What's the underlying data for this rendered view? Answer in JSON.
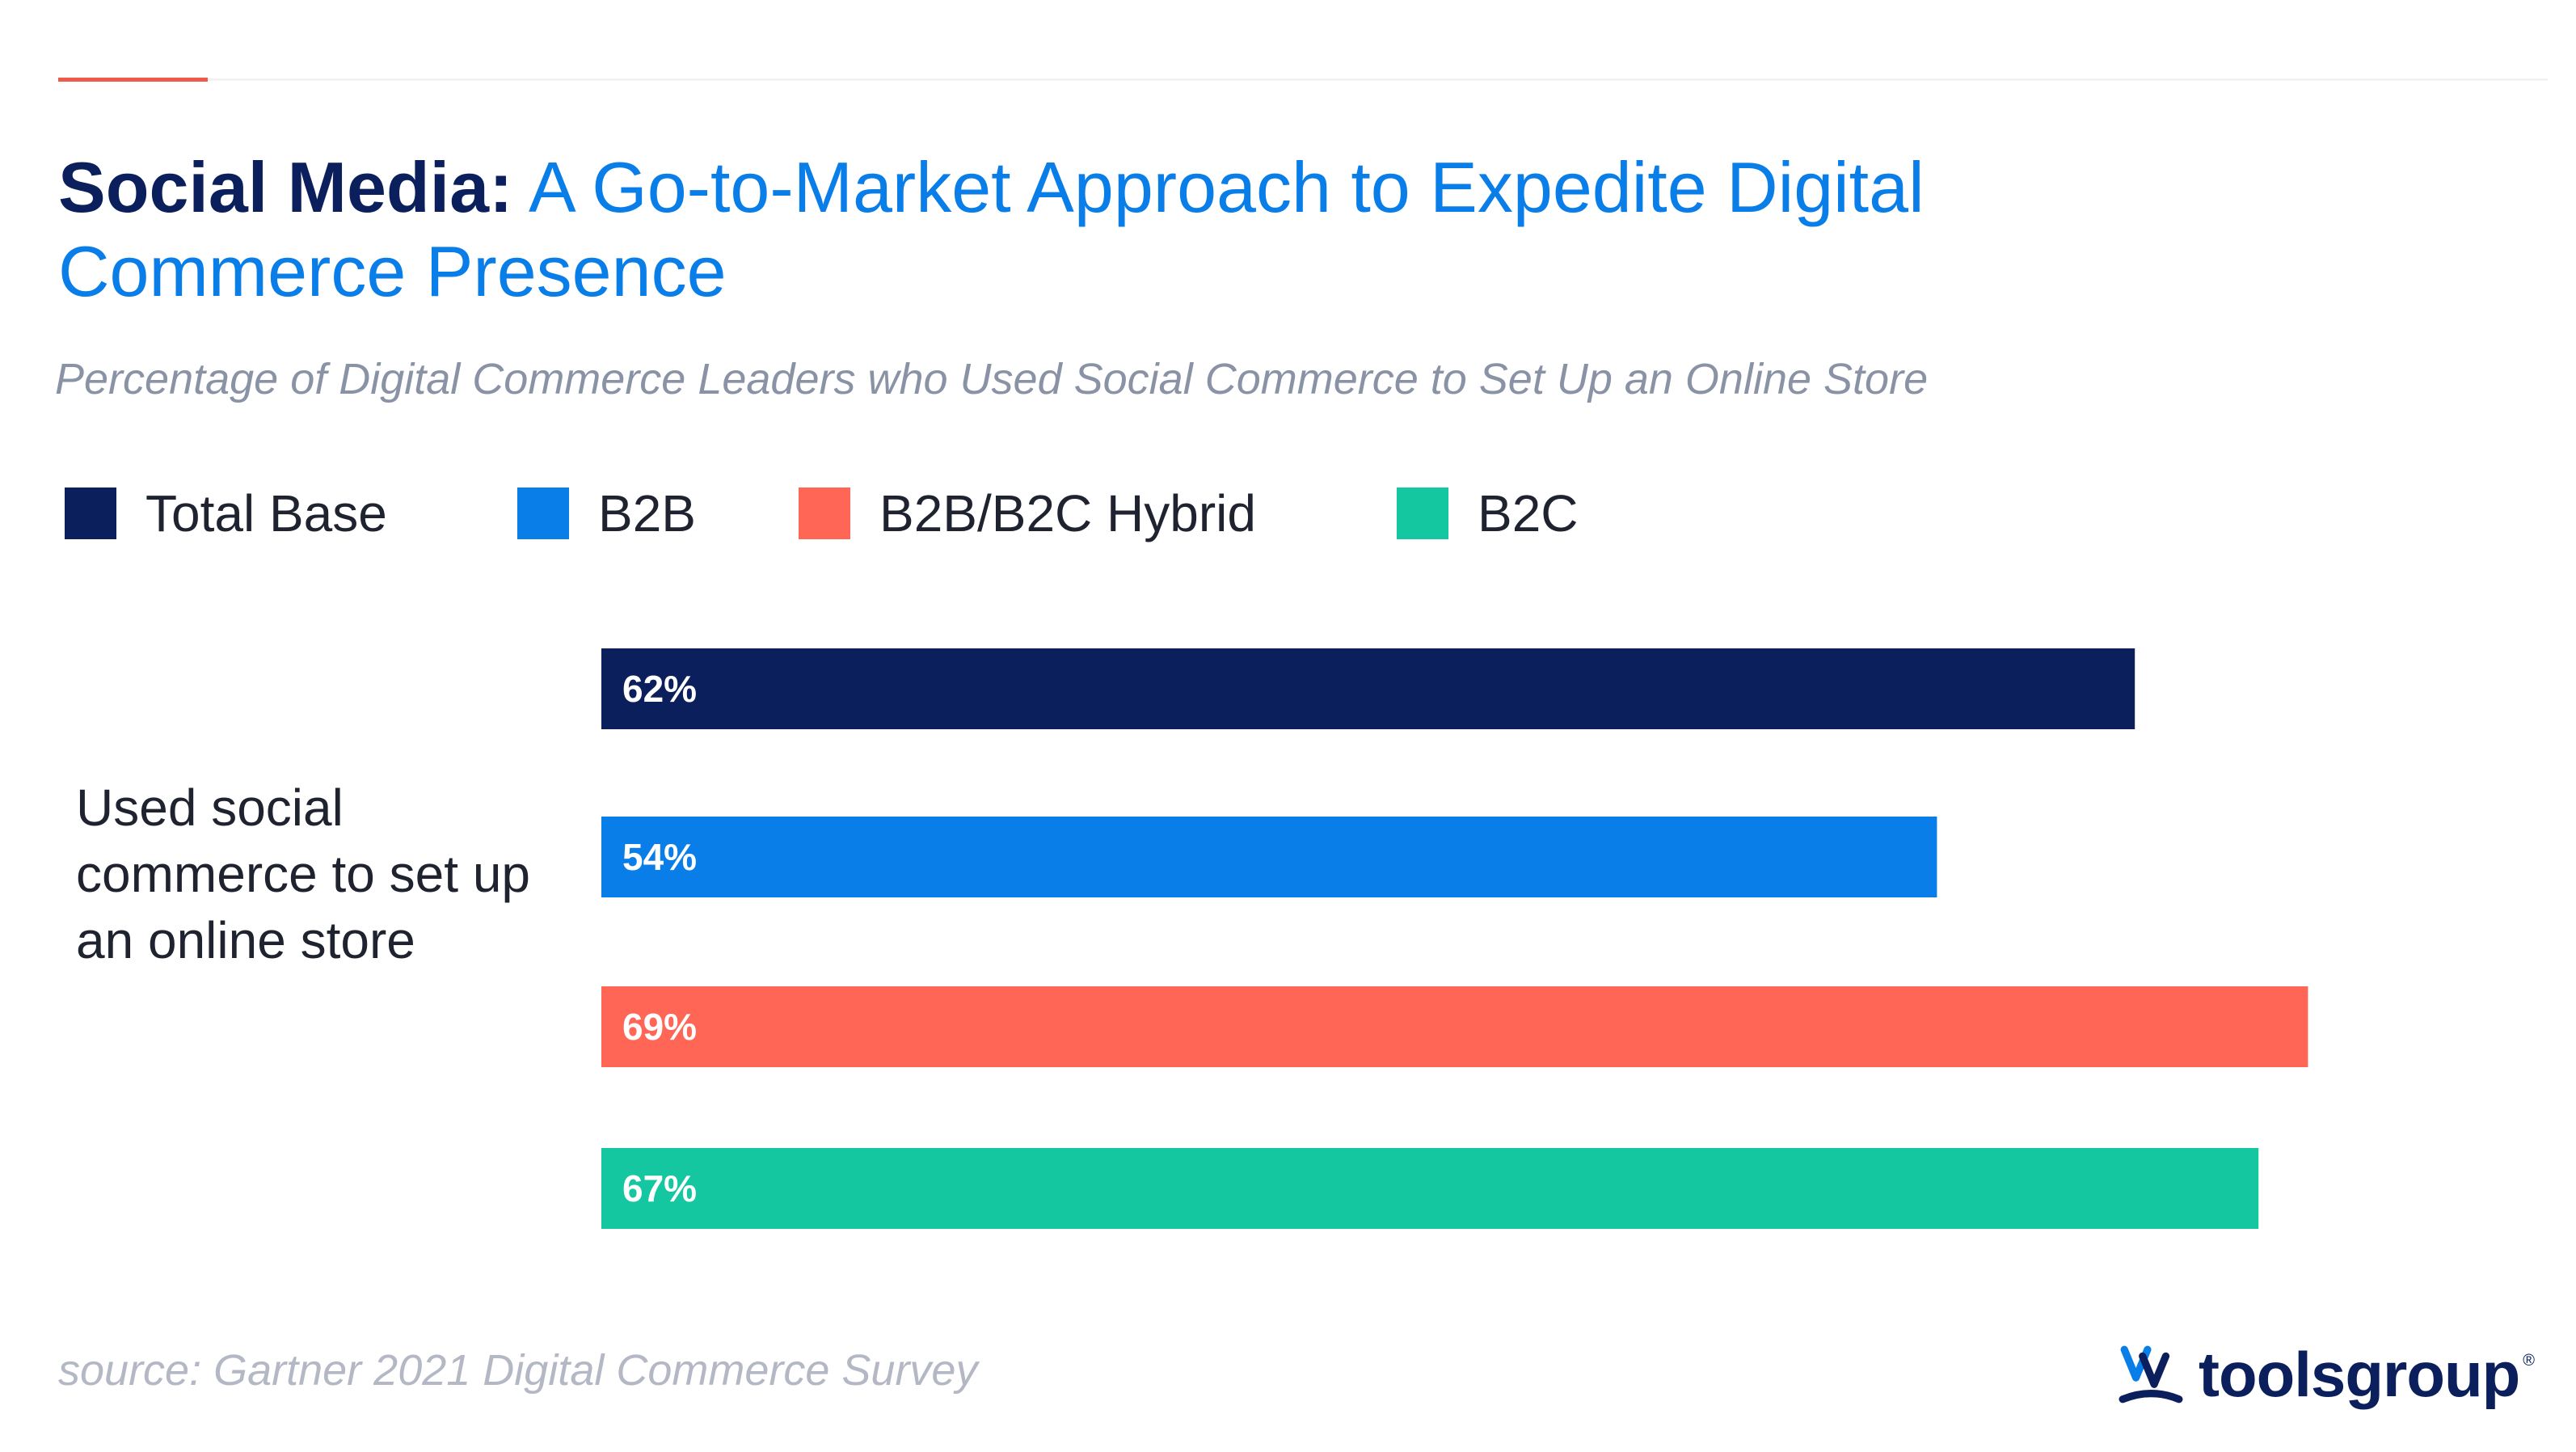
{
  "title": {
    "lead": "Social Media:",
    "rest": "A Go-to-Market Approach to Expedite Digital Commerce Presence"
  },
  "subtitle": "Percentage of Digital Commerce Leaders who Used Social Commerce to Set Up an Online Store",
  "legend": [
    {
      "label": "Total Base",
      "color": "#0b1f5c"
    },
    {
      "label": "B2B",
      "color": "#0a7ee8"
    },
    {
      "label": "B2B/B2C Hybrid",
      "color": "#ff6655"
    },
    {
      "label": "B2C",
      "color": "#14c7a0"
    }
  ],
  "chart_data": {
    "type": "bar",
    "orientation": "horizontal",
    "categories": [
      "Used social commerce to set up an online store"
    ],
    "series": [
      {
        "name": "Total Base",
        "values": [
          62
        ],
        "label": "62%",
        "color": "#0b1f5c"
      },
      {
        "name": "B2B",
        "values": [
          54
        ],
        "label": "54%",
        "color": "#0a7ee8"
      },
      {
        "name": "B2B/B2C Hybrid",
        "values": [
          69
        ],
        "label": "69%",
        "color": "#ff6655"
      },
      {
        "name": "B2C",
        "values": [
          67
        ],
        "label": "67%",
        "color": "#14c7a0"
      }
    ],
    "title": "Social Media: A Go-to-Market Approach to Expedite Digital Commerce Presence",
    "subtitle": "Percentage of Digital Commerce Leaders who Used Social Commerce to Set Up an Online Store",
    "xlim": [
      0,
      100
    ],
    "grid": false,
    "legend_position": "top-left"
  },
  "category_label": "Used social commerce to set up an online store",
  "footer": {
    "source": "source: Gartner 2021 Digital Commerce Survey",
    "brand": "toolsgroup",
    "brand_mark": "reg-icon"
  },
  "colors": {
    "accent": "#f05a4a",
    "navy": "#0b1f5c",
    "blue": "#0a7ee8"
  }
}
